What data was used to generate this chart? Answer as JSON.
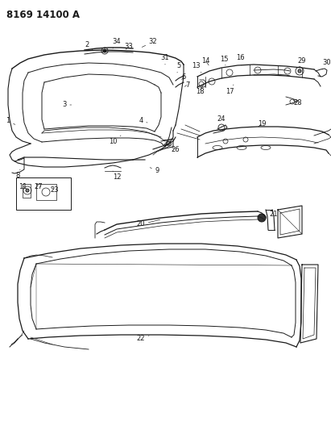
{
  "title": "8169 14100 A",
  "bg_color": "#ffffff",
  "line_color": "#1a1a1a",
  "fig_width": 4.11,
  "fig_height": 5.33,
  "dpi": 100,
  "title_fontsize": 8.5,
  "label_fontsize": 6.0
}
